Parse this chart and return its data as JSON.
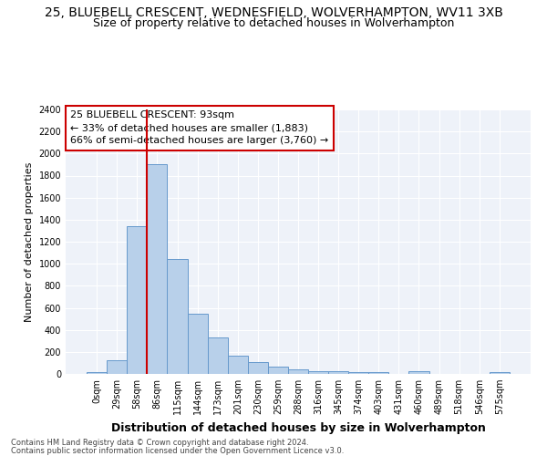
{
  "title": "25, BLUEBELL CRESCENT, WEDNESFIELD, WOLVERHAMPTON, WV11 3XB",
  "subtitle": "Size of property relative to detached houses in Wolverhampton",
  "xlabel": "Distribution of detached houses by size in Wolverhampton",
  "ylabel": "Number of detached properties",
  "footer_line1": "Contains HM Land Registry data © Crown copyright and database right 2024.",
  "footer_line2": "Contains public sector information licensed under the Open Government Licence v3.0.",
  "annotation_line1": "25 BLUEBELL CRESCENT: 93sqm",
  "annotation_line2": "← 33% of detached houses are smaller (1,883)",
  "annotation_line3": "66% of semi-detached houses are larger (3,760) →",
  "bar_labels": [
    "0sqm",
    "29sqm",
    "58sqm",
    "86sqm",
    "115sqm",
    "144sqm",
    "173sqm",
    "201sqm",
    "230sqm",
    "259sqm",
    "288sqm",
    "316sqm",
    "345sqm",
    "374sqm",
    "403sqm",
    "431sqm",
    "460sqm",
    "489sqm",
    "518sqm",
    "546sqm",
    "575sqm"
  ],
  "bar_values": [
    20,
    125,
    1340,
    1900,
    1045,
    545,
    335,
    165,
    110,
    65,
    38,
    28,
    25,
    20,
    15,
    0,
    25,
    0,
    0,
    0,
    18
  ],
  "bar_color": "#b8d0ea",
  "bar_edge_color": "#6699cc",
  "vline_index": 3,
  "vline_color": "#cc0000",
  "annotation_box_edgecolor": "#cc0000",
  "background_color": "#eef2f9",
  "grid_color": "#ffffff",
  "ylim": [
    0,
    2400
  ],
  "yticks": [
    0,
    200,
    400,
    600,
    800,
    1000,
    1200,
    1400,
    1600,
    1800,
    2000,
    2200,
    2400
  ],
  "title_fontsize": 10,
  "subtitle_fontsize": 9,
  "xlabel_fontsize": 9,
  "ylabel_fontsize": 8,
  "tick_fontsize": 7,
  "footer_fontsize": 6,
  "annotation_fontsize": 8
}
